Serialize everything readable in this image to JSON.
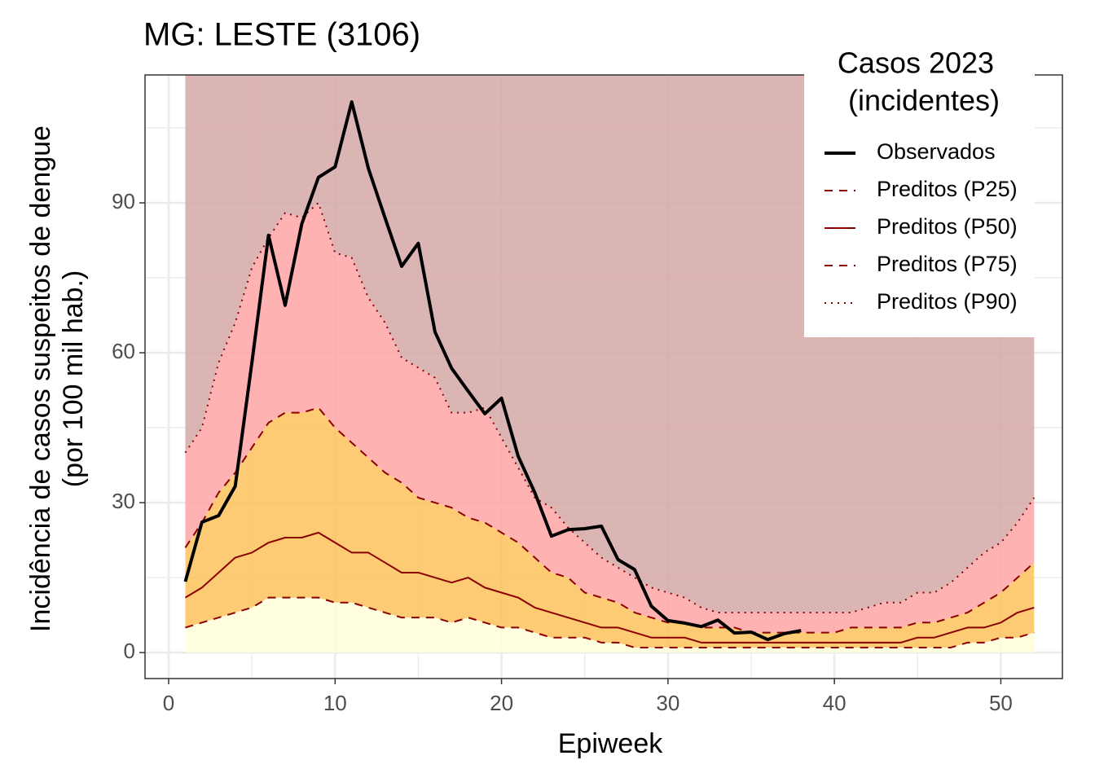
{
  "chart_data": {
    "type": "line",
    "title": "MG: LESTE (3106)",
    "xlabel": "Epiweek",
    "ylabel": [
      "Incidência de casos suspeitos de dengue",
      "(por 100 mil hab.)"
    ],
    "legend_title": [
      "Casos 2023",
      "(incidentes)"
    ],
    "legend_position": "top-right",
    "grid": true,
    "xlim": [
      -1.42,
      53.7
    ],
    "ylim": [
      -5.2,
      115.6
    ],
    "xticks": [
      0,
      10,
      20,
      30,
      40,
      50
    ],
    "yticks": [
      0,
      30,
      60,
      90
    ],
    "x": [
      1,
      2,
      3,
      4,
      5,
      6,
      7,
      8,
      9,
      10,
      11,
      12,
      13,
      14,
      15,
      16,
      17,
      18,
      19,
      20,
      21,
      22,
      23,
      24,
      25,
      26,
      27,
      28,
      29,
      30,
      31,
      32,
      33,
      34,
      35,
      36,
      37,
      38,
      39,
      40,
      41,
      42,
      43,
      44,
      45,
      46,
      47,
      48,
      49,
      50,
      51,
      52
    ],
    "band_colors": [
      "#ffffd9",
      "#fdc25a",
      "#ffa5a5",
      "#d5a7a7"
    ],
    "series": [
      {
        "name": "Observados",
        "color": "#000000",
        "dash": "solid",
        "width": 4,
        "values": [
          14.2,
          26.1,
          27.4,
          33.3,
          58,
          83.5,
          69.5,
          85.8,
          95.1,
          97.2,
          110.2,
          96.9,
          87,
          77.3,
          81.9,
          64.2,
          56.9,
          52.3,
          47.8,
          50.9,
          39.3,
          32,
          23.3,
          24.6,
          24.8,
          25.3,
          18.6,
          16.6,
          9.3,
          6.4,
          5.9,
          5.2,
          6.5,
          3.9,
          4.1,
          2.6,
          3.8,
          4.4,
          null,
          null,
          null,
          null,
          null,
          null,
          null,
          null,
          null,
          null,
          null,
          null,
          null,
          null
        ]
      },
      {
        "name": "Preditos (P25)",
        "color": "#8b0000",
        "dash": "dashed",
        "width": 2,
        "values": [
          5,
          6,
          7,
          8,
          9,
          11,
          11,
          11,
          11,
          10,
          10,
          9,
          8,
          7,
          7,
          7,
          6,
          7,
          6,
          5,
          5,
          4,
          3,
          3,
          3,
          2,
          2,
          1,
          1,
          1,
          1,
          1,
          1,
          1,
          1,
          1,
          1,
          1,
          1,
          1,
          1,
          1,
          1,
          1,
          1,
          1,
          1,
          2,
          2,
          3,
          3,
          4
        ]
      },
      {
        "name": "Preditos (P50)",
        "color": "#8b0000",
        "dash": "solid",
        "width": 2,
        "values": [
          11,
          13,
          16,
          19,
          20,
          22,
          23,
          23,
          24,
          22,
          20,
          20,
          18,
          16,
          16,
          15,
          14,
          15,
          13,
          12,
          11,
          9,
          8,
          7,
          6,
          5,
          5,
          4,
          3,
          3,
          3,
          2,
          2,
          2,
          2,
          2,
          2,
          2,
          2,
          2,
          2,
          2,
          2,
          2,
          3,
          3,
          4,
          5,
          5,
          6,
          8,
          9
        ]
      },
      {
        "name": "Preditos (P75)",
        "color": "#8b0000",
        "dash": "dashed",
        "width": 2,
        "values": [
          21,
          26,
          32,
          36,
          41,
          46,
          48,
          48,
          49,
          45,
          42,
          39,
          36,
          34,
          31,
          30,
          29,
          27,
          26,
          24,
          22,
          19,
          16,
          15,
          12,
          11,
          10,
          8,
          7,
          6,
          6,
          5,
          5,
          5,
          4,
          4,
          4,
          4,
          4,
          4,
          5,
          5,
          5,
          5,
          6,
          6,
          7,
          8,
          10,
          12,
          15,
          18
        ]
      },
      {
        "name": "Preditos (P90)",
        "color": "#8b0000",
        "dash": "dotted",
        "width": 2,
        "values": [
          40,
          45,
          58,
          66,
          77,
          83,
          88,
          87,
          90,
          80,
          79,
          71,
          66,
          59,
          57,
          55,
          48,
          48,
          49,
          43,
          37,
          31,
          29,
          25,
          22,
          19,
          17,
          15,
          13,
          12,
          11,
          9,
          8,
          8,
          8,
          8,
          8,
          8,
          8,
          8,
          8,
          9,
          10,
          10,
          12,
          12,
          14,
          17,
          20,
          22,
          26,
          31
        ]
      }
    ]
  }
}
